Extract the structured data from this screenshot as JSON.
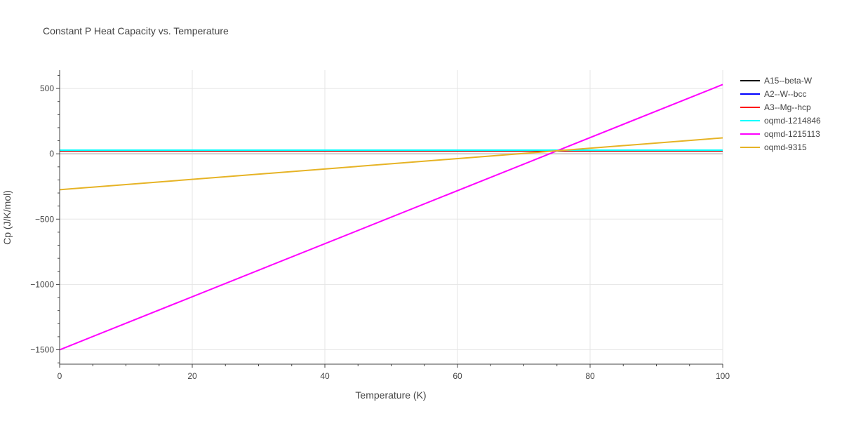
{
  "chart_data": {
    "type": "line",
    "title": "Constant P Heat Capacity vs. Temperature",
    "xlabel": "Temperature (K)",
    "ylabel": "Cp (J/K/mol)",
    "xlim": [
      0,
      100
    ],
    "ylim": [
      -1610,
      640
    ],
    "x_ticks": [
      0,
      20,
      40,
      60,
      80,
      100
    ],
    "x_tick_labels": [
      "0",
      "20",
      "40",
      "60",
      "80",
      "100"
    ],
    "y_ticks": [
      -1500,
      -1000,
      -500,
      0,
      500
    ],
    "y_tick_labels": [
      "−1500",
      "−1000",
      "−500",
      "0",
      "500"
    ],
    "grid": true,
    "legend_position": "right",
    "series": [
      {
        "name": "A15--beta-W",
        "color": "#000000",
        "x": [
          0,
          100
        ],
        "y": [
          22,
          22
        ]
      },
      {
        "name": "A2--W--bcc",
        "color": "#0000ff",
        "x": [
          0,
          100
        ],
        "y": [
          25,
          25
        ]
      },
      {
        "name": "A3--Mg--hcp",
        "color": "#ff0000",
        "x": [
          0,
          100
        ],
        "y": [
          24,
          24
        ]
      },
      {
        "name": "oqmd-1214846",
        "color": "#00ffff",
        "x": [
          0,
          100
        ],
        "y": [
          28,
          28
        ]
      },
      {
        "name": "oqmd-1215113",
        "color": "#ff00ff",
        "x": [
          0,
          100
        ],
        "y": [
          -1500,
          530
        ]
      },
      {
        "name": "oqmd-9315",
        "color": "#e6b325",
        "x": [
          0,
          100
        ],
        "y": [
          -275,
          122
        ]
      }
    ]
  }
}
